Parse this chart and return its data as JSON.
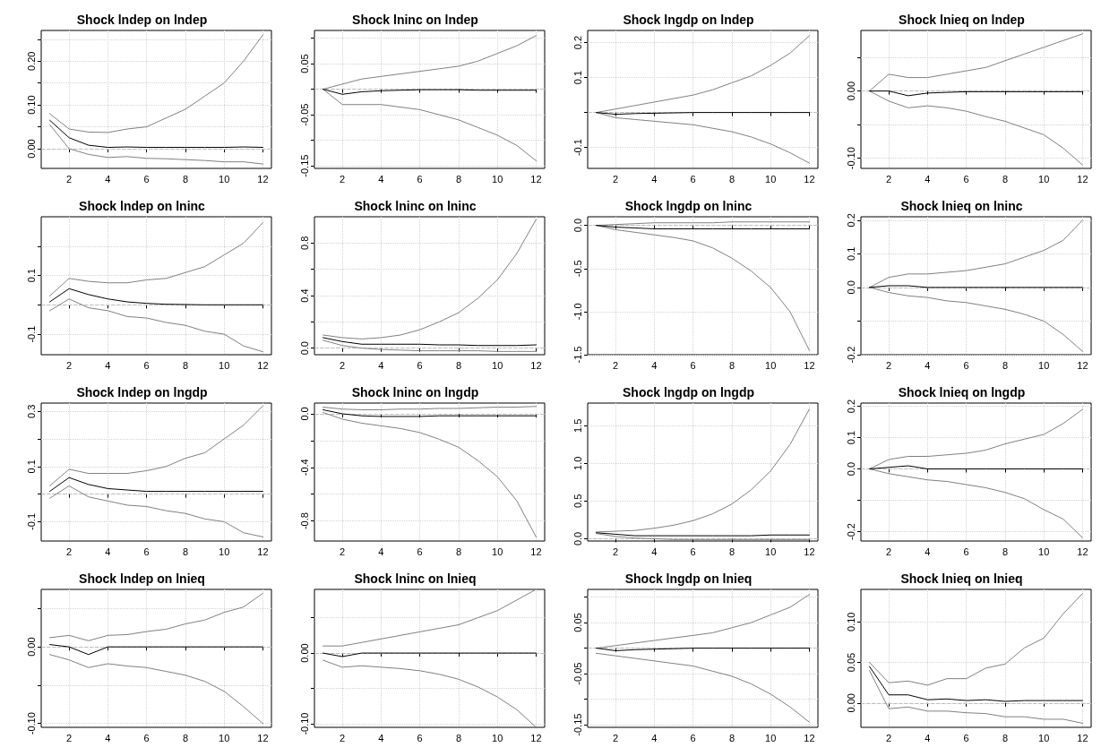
{
  "chart_data": [
    {
      "type": "line",
      "title": "Shock lndep on lndep",
      "x": [
        1,
        2,
        3,
        4,
        5,
        6,
        7,
        8,
        9,
        10,
        11,
        12
      ],
      "xlim": [
        0.56,
        12.44
      ],
      "xticks": [
        2,
        4,
        6,
        8,
        10,
        12
      ],
      "ylim": [
        -0.045,
        0.27
      ],
      "yticks": [
        {
          "value": 0,
          "label": "0.00"
        },
        {
          "value": 0.05,
          "label": null
        },
        {
          "value": 0.1,
          "label": "0.10"
        },
        {
          "value": 0.15,
          "label": null
        },
        {
          "value": 0.2,
          "label": "0.20"
        },
        {
          "value": 0.25,
          "label": null
        }
      ],
      "grid": true,
      "marker": "none",
      "line_style": "solid",
      "ref_lines": [
        {
          "axis": "y",
          "value": 0,
          "color": "#bebebe",
          "line_style": "dashed"
        }
      ],
      "series": [
        {
          "color": "#000000",
          "values": [
            0.065,
            0.025,
            0.008,
            0.003,
            0.004,
            0.003,
            0.003,
            0.003,
            0.003,
            0.003,
            0.004,
            0.003
          ]
        },
        {
          "color": "#808080",
          "values": [
            0.08,
            0.045,
            0.038,
            0.037,
            0.045,
            0.05,
            0.07,
            0.09,
            0.12,
            0.15,
            0.2,
            0.26
          ]
        },
        {
          "color": "#808080",
          "values": [
            0.055,
            0.0,
            -0.013,
            -0.02,
            -0.018,
            -0.022,
            -0.023,
            -0.025,
            -0.027,
            -0.03,
            -0.03,
            -0.035
          ]
        }
      ]
    },
    {
      "type": "line",
      "title": "Shock lninc on lndep",
      "x": [
        1,
        2,
        3,
        4,
        5,
        6,
        7,
        8,
        9,
        10,
        11,
        12
      ],
      "xlim": [
        0.56,
        12.44
      ],
      "xticks": [
        2,
        4,
        6,
        8,
        10,
        12
      ],
      "ylim": [
        -0.155,
        0.115
      ],
      "yticks": [
        -0.15,
        {
          "value": -0.1,
          "label": null
        },
        -0.05,
        {
          "value": 0,
          "label": null
        },
        0.05,
        {
          "value": 0.1,
          "label": null
        }
      ],
      "grid": true,
      "marker": "none",
      "line_style": "solid",
      "ref_lines": [
        {
          "axis": "y",
          "value": 0,
          "color": "#bebebe",
          "line_style": "dashed"
        }
      ],
      "series": [
        {
          "color": "#000000",
          "values": [
            0,
            -0.01,
            -0.005,
            -0.003,
            -0.002,
            -0.001,
            -0.001,
            -0.001,
            -0.002,
            -0.002,
            -0.002,
            -0.002
          ]
        },
        {
          "color": "#808080",
          "values": [
            0,
            0.01,
            0.02,
            0.025,
            0.03,
            0.035,
            0.04,
            0.045,
            0.055,
            0.07,
            0.085,
            0.105
          ]
        },
        {
          "color": "#808080",
          "values": [
            0,
            -0.03,
            -0.03,
            -0.03,
            -0.035,
            -0.04,
            -0.05,
            -0.06,
            -0.075,
            -0.09,
            -0.11,
            -0.14
          ]
        }
      ]
    },
    {
      "type": "line",
      "title": "Shock lngdp on lndep",
      "x": [
        1,
        2,
        3,
        4,
        5,
        6,
        7,
        8,
        9,
        10,
        11,
        12
      ],
      "xlim": [
        0.56,
        12.44
      ],
      "xticks": [
        2,
        4,
        6,
        8,
        10,
        12
      ],
      "ylim": [
        -0.16,
        0.235
      ],
      "yticks": [
        -0.1,
        {
          "value": 0,
          "label": null
        },
        0.1,
        0.2
      ],
      "grid": true,
      "marker": "none",
      "line_style": "solid",
      "ref_lines": [
        {
          "axis": "y",
          "value": 0,
          "color": "#bebebe",
          "line_style": "dashed"
        }
      ],
      "series": [
        {
          "color": "#000000",
          "values": [
            0,
            -0.005,
            -0.003,
            -0.002,
            -0.001,
            0,
            0,
            0,
            0,
            0,
            0,
            0
          ]
        },
        {
          "color": "#808080",
          "values": [
            0,
            0.01,
            0.02,
            0.03,
            0.04,
            0.05,
            0.065,
            0.085,
            0.105,
            0.135,
            0.17,
            0.22
          ]
        },
        {
          "color": "#808080",
          "values": [
            0,
            -0.015,
            -0.02,
            -0.025,
            -0.03,
            -0.035,
            -0.045,
            -0.055,
            -0.07,
            -0.09,
            -0.115,
            -0.145
          ]
        }
      ]
    },
    {
      "type": "line",
      "title": "Shock lnieq on lndep",
      "x": [
        1,
        2,
        3,
        4,
        5,
        6,
        7,
        8,
        9,
        10,
        11,
        12
      ],
      "xlim": [
        0.56,
        12.44
      ],
      "xticks": [
        2,
        4,
        6,
        8,
        10,
        12
      ],
      "ylim": [
        -0.115,
        0.09
      ],
      "yticks": [
        {
          "value": -0.1,
          "label": "-0.10"
        },
        {
          "value": -0.05,
          "label": null
        },
        {
          "value": 0,
          "label": "0.00"
        },
        {
          "value": 0.05,
          "label": null
        }
      ],
      "grid": true,
      "marker": "none",
      "line_style": "solid",
      "ref_lines": [
        {
          "axis": "y",
          "value": 0,
          "color": "#bebebe",
          "line_style": "dashed"
        }
      ],
      "series": [
        {
          "color": "#000000",
          "values": [
            0,
            0,
            -0.007,
            -0.003,
            -0.002,
            -0.001,
            -0.001,
            -0.001,
            -0.001,
            -0.001,
            -0.001,
            -0.001
          ]
        },
        {
          "color": "#808080",
          "values": [
            0,
            0.025,
            0.02,
            0.02,
            0.025,
            0.03,
            0.035,
            0.045,
            0.055,
            0.065,
            0.075,
            0.085
          ]
        },
        {
          "color": "#808080",
          "values": [
            0,
            -0.015,
            -0.025,
            -0.022,
            -0.025,
            -0.03,
            -0.038,
            -0.045,
            -0.055,
            -0.065,
            -0.085,
            -0.11
          ]
        }
      ]
    },
    {
      "type": "line",
      "title": "Shock lndep on lninc",
      "x": [
        1,
        2,
        3,
        4,
        5,
        6,
        7,
        8,
        9,
        10,
        11,
        12
      ],
      "xlim": [
        0.56,
        12.44
      ],
      "xticks": [
        2,
        4,
        6,
        8,
        10,
        12
      ],
      "ylim": [
        -0.17,
        0.3
      ],
      "yticks": [
        -0.1,
        {
          "value": 0,
          "label": null
        },
        0.1,
        {
          "value": 0.2,
          "label": null
        }
      ],
      "grid": true,
      "marker": "none",
      "line_style": "solid",
      "ref_lines": [
        {
          "axis": "y",
          "value": 0,
          "color": "#bebebe",
          "line_style": "dashed"
        }
      ],
      "series": [
        {
          "color": "#000000",
          "values": [
            0.01,
            0.055,
            0.035,
            0.02,
            0.01,
            0.005,
            0.002,
            0.001,
            0,
            0,
            0,
            0
          ]
        },
        {
          "color": "#808080",
          "values": [
            0.03,
            0.09,
            0.08,
            0.075,
            0.075,
            0.085,
            0.09,
            0.11,
            0.13,
            0.17,
            0.21,
            0.28
          ]
        },
        {
          "color": "#808080",
          "values": [
            -0.02,
            0.02,
            -0.01,
            -0.02,
            -0.04,
            -0.045,
            -0.06,
            -0.07,
            -0.09,
            -0.1,
            -0.14,
            -0.16
          ]
        }
      ]
    },
    {
      "type": "line",
      "title": "Shock lninc on lninc",
      "x": [
        1,
        2,
        3,
        4,
        5,
        6,
        7,
        8,
        9,
        10,
        11,
        12
      ],
      "xlim": [
        0.56,
        12.44
      ],
      "xticks": [
        2,
        4,
        6,
        8,
        10,
        12
      ],
      "ylim": [
        -0.05,
        1.0
      ],
      "yticks": [
        {
          "value": 0,
          "label": "0.0"
        },
        {
          "value": 0.2,
          "label": null
        },
        0.4,
        {
          "value": 0.6,
          "label": null
        },
        0.8
      ],
      "grid": true,
      "marker": "none",
      "line_style": "solid",
      "ref_lines": [
        {
          "axis": "y",
          "value": 0,
          "color": "#bebebe",
          "line_style": "dashed"
        }
      ],
      "series": [
        {
          "color": "#000000",
          "values": [
            0.08,
            0.05,
            0.03,
            0.03,
            0.03,
            0.03,
            0.025,
            0.025,
            0.02,
            0.02,
            0.02,
            0.025
          ]
        },
        {
          "color": "#808080",
          "values": [
            0.1,
            0.08,
            0.07,
            0.08,
            0.1,
            0.14,
            0.2,
            0.27,
            0.38,
            0.52,
            0.72,
            0.98
          ]
        },
        {
          "color": "#808080",
          "values": [
            0.06,
            0.02,
            0,
            -0.01,
            -0.015,
            -0.02,
            -0.02,
            -0.02,
            -0.02,
            -0.025,
            -0.025,
            -0.025
          ]
        }
      ]
    },
    {
      "type": "line",
      "title": "Shock lngdp on lninc",
      "x": [
        1,
        2,
        3,
        4,
        5,
        6,
        7,
        8,
        9,
        10,
        11,
        12
      ],
      "xlim": [
        0.56,
        12.44
      ],
      "xticks": [
        2,
        4,
        6,
        8,
        10,
        12
      ],
      "ylim": [
        -1.5,
        0.1
      ],
      "yticks": [
        -1.5,
        {
          "value": -1,
          "label": "-1.0"
        },
        -0.5,
        {
          "value": 0,
          "label": "0.0"
        }
      ],
      "grid": true,
      "marker": "none",
      "line_style": "solid",
      "ref_lines": [
        {
          "axis": "y",
          "value": 0,
          "color": "#bebebe",
          "line_style": "dashed"
        }
      ],
      "series": [
        {
          "color": "#000000",
          "values": [
            0,
            -0.02,
            -0.03,
            -0.04,
            -0.04,
            -0.04,
            -0.04,
            -0.04,
            -0.04,
            -0.04,
            -0.04,
            -0.04
          ]
        },
        {
          "color": "#808080",
          "values": [
            0,
            0.01,
            0.02,
            0.03,
            0.03,
            0.03,
            0.03,
            0.04,
            0.04,
            0.04,
            0.04,
            0.04
          ]
        },
        {
          "color": "#808080",
          "values": [
            0,
            -0.05,
            -0.08,
            -0.11,
            -0.14,
            -0.18,
            -0.26,
            -0.38,
            -0.53,
            -0.72,
            -1.0,
            -1.45
          ]
        }
      ]
    },
    {
      "type": "line",
      "title": "Shock lnieq on lninc",
      "x": [
        1,
        2,
        3,
        4,
        5,
        6,
        7,
        8,
        9,
        10,
        11,
        12
      ],
      "xlim": [
        0.56,
        12.44
      ],
      "xticks": [
        2,
        4,
        6,
        8,
        10,
        12
      ],
      "ylim": [
        -0.2,
        0.21
      ],
      "yticks": [
        -0.2,
        {
          "value": -0.1,
          "label": null
        },
        {
          "value": 0,
          "label": "0.0"
        },
        0.1,
        0.2
      ],
      "grid": true,
      "marker": "none",
      "line_style": "solid",
      "ref_lines": [
        {
          "axis": "y",
          "value": 0,
          "color": "#bebebe",
          "line_style": "dashed"
        }
      ],
      "series": [
        {
          "color": "#000000",
          "values": [
            0,
            0.005,
            0.005,
            0,
            0,
            0,
            0,
            0,
            0,
            0,
            0,
            0
          ]
        },
        {
          "color": "#808080",
          "values": [
            0,
            0.03,
            0.04,
            0.04,
            0.045,
            0.05,
            0.06,
            0.07,
            0.09,
            0.11,
            0.14,
            0.2
          ]
        },
        {
          "color": "#808080",
          "values": [
            0,
            -0.015,
            -0.025,
            -0.03,
            -0.04,
            -0.045,
            -0.055,
            -0.065,
            -0.08,
            -0.1,
            -0.14,
            -0.19
          ]
        }
      ]
    },
    {
      "type": "line",
      "title": "Shock lndep on lngdp",
      "x": [
        1,
        2,
        3,
        4,
        5,
        6,
        7,
        8,
        9,
        10,
        11,
        12
      ],
      "xlim": [
        0.56,
        12.44
      ],
      "xticks": [
        2,
        4,
        6,
        8,
        10,
        12
      ],
      "ylim": [
        -0.17,
        0.33
      ],
      "yticks": [
        -0.1,
        {
          "value": 0,
          "label": null
        },
        0.1,
        {
          "value": 0.2,
          "label": null
        },
        0.3
      ],
      "grid": true,
      "marker": "none",
      "line_style": "solid",
      "ref_lines": [
        {
          "axis": "y",
          "value": 0,
          "color": "#bebebe",
          "line_style": "dashed"
        }
      ],
      "series": [
        {
          "color": "#000000",
          "values": [
            0.01,
            0.06,
            0.035,
            0.02,
            0.015,
            0.01,
            0.01,
            0.01,
            0.01,
            0.01,
            0.01,
            0.01
          ]
        },
        {
          "color": "#808080",
          "values": [
            0.03,
            0.09,
            0.075,
            0.075,
            0.075,
            0.085,
            0.1,
            0.13,
            0.15,
            0.2,
            0.25,
            0.32
          ]
        },
        {
          "color": "#808080",
          "values": [
            -0.015,
            0.03,
            -0.01,
            -0.025,
            -0.04,
            -0.045,
            -0.06,
            -0.07,
            -0.09,
            -0.1,
            -0.14,
            -0.155
          ]
        }
      ]
    },
    {
      "type": "line",
      "title": "Shock lninc on lngdp",
      "x": [
        1,
        2,
        3,
        4,
        5,
        6,
        7,
        8,
        9,
        10,
        11,
        12
      ],
      "xlim": [
        0.56,
        12.44
      ],
      "xticks": [
        2,
        4,
        6,
        8,
        10,
        12
      ],
      "ylim": [
        -0.95,
        0.08
      ],
      "yticks": [
        -0.8,
        {
          "value": -0.6,
          "label": null
        },
        -0.4,
        {
          "value": -0.2,
          "label": null
        },
        {
          "value": 0,
          "label": "0.0"
        }
      ],
      "grid": true,
      "marker": "none",
      "line_style": "solid",
      "ref_lines": [
        {
          "axis": "y",
          "value": 0,
          "color": "#bebebe",
          "line_style": "dashed"
        }
      ],
      "series": [
        {
          "color": "#000000",
          "values": [
            0.03,
            0,
            -0.015,
            -0.02,
            -0.02,
            -0.02,
            -0.015,
            -0.015,
            -0.015,
            -0.015,
            -0.015,
            -0.015
          ]
        },
        {
          "color": "#808080",
          "values": [
            0.05,
            0.035,
            0.03,
            0.03,
            0.035,
            0.035,
            0.04,
            0.04,
            0.045,
            0.05,
            0.05,
            0.055
          ]
        },
        {
          "color": "#808080",
          "values": [
            0.01,
            -0.04,
            -0.07,
            -0.09,
            -0.11,
            -0.14,
            -0.19,
            -0.25,
            -0.35,
            -0.47,
            -0.65,
            -0.92
          ]
        }
      ]
    },
    {
      "type": "line",
      "title": "Shock lngdp on lngdp",
      "x": [
        1,
        2,
        3,
        4,
        5,
        6,
        7,
        8,
        9,
        10,
        11,
        12
      ],
      "xlim": [
        0.56,
        12.44
      ],
      "xticks": [
        2,
        4,
        6,
        8,
        10,
        12
      ],
      "ylim": [
        -0.03,
        1.8
      ],
      "yticks": [
        {
          "value": 0,
          "label": "0.0"
        },
        0.5,
        {
          "value": 1,
          "label": "1.0"
        },
        1.5
      ],
      "grid": true,
      "marker": "none",
      "line_style": "solid",
      "ref_lines": [
        {
          "axis": "y",
          "value": 0,
          "color": "#bebebe",
          "line_style": "dashed"
        }
      ],
      "series": [
        {
          "color": "#000000",
          "values": [
            0.08,
            0.06,
            0.04,
            0.04,
            0.04,
            0.04,
            0.04,
            0.04,
            0.04,
            0.05,
            0.05,
            0.05
          ]
        },
        {
          "color": "#808080",
          "values": [
            0.09,
            0.1,
            0.11,
            0.14,
            0.18,
            0.24,
            0.33,
            0.46,
            0.65,
            0.9,
            1.25,
            1.72
          ]
        },
        {
          "color": "#808080",
          "values": [
            0.07,
            0.03,
            0.01,
            0,
            -0.01,
            -0.01,
            -0.01,
            -0.01,
            -0.01,
            -0.01,
            -0.01,
            -0.01
          ]
        }
      ]
    },
    {
      "type": "line",
      "title": "Shock lnieq on lngdp",
      "x": [
        1,
        2,
        3,
        4,
        5,
        6,
        7,
        8,
        9,
        10,
        11,
        12
      ],
      "xlim": [
        0.56,
        12.44
      ],
      "xticks": [
        2,
        4,
        6,
        8,
        10,
        12
      ],
      "ylim": [
        -0.23,
        0.21
      ],
      "yticks": [
        -0.2,
        {
          "value": -0.1,
          "label": null
        },
        {
          "value": 0,
          "label": "0.0"
        },
        0.1,
        0.2
      ],
      "grid": true,
      "marker": "none",
      "line_style": "solid",
      "ref_lines": [
        {
          "axis": "y",
          "value": 0,
          "color": "#bebebe",
          "line_style": "dashed"
        }
      ],
      "series": [
        {
          "color": "#000000",
          "values": [
            0,
            0.005,
            0.01,
            0,
            0,
            0,
            0,
            0,
            0,
            0,
            0,
            0
          ]
        },
        {
          "color": "#808080",
          "values": [
            0,
            0.03,
            0.04,
            0.04,
            0.045,
            0.05,
            0.06,
            0.08,
            0.095,
            0.11,
            0.145,
            0.19
          ]
        },
        {
          "color": "#808080",
          "values": [
            0,
            -0.015,
            -0.025,
            -0.035,
            -0.04,
            -0.05,
            -0.06,
            -0.075,
            -0.095,
            -0.13,
            -0.16,
            -0.22
          ]
        }
      ]
    },
    {
      "type": "line",
      "title": "Shock lndep on lnieq",
      "x": [
        1,
        2,
        3,
        4,
        5,
        6,
        7,
        8,
        9,
        10,
        11,
        12
      ],
      "xlim": [
        0.56,
        12.44
      ],
      "xticks": [
        2,
        4,
        6,
        8,
        10,
        12
      ],
      "ylim": [
        -0.105,
        0.075
      ],
      "yticks": [
        {
          "value": -0.1,
          "label": "-0.10"
        },
        {
          "value": -0.05,
          "label": null
        },
        {
          "value": 0,
          "label": "0.00"
        },
        {
          "value": 0.05,
          "label": null
        }
      ],
      "grid": true,
      "marker": "none",
      "line_style": "solid",
      "ref_lines": [
        {
          "axis": "y",
          "value": 0,
          "color": "#bebebe",
          "line_style": "dashed"
        }
      ],
      "series": [
        {
          "color": "#000000",
          "values": [
            0.003,
            0,
            -0.01,
            0,
            0,
            0,
            0,
            0,
            0,
            0,
            0,
            0
          ]
        },
        {
          "color": "#808080",
          "values": [
            0.012,
            0.015,
            0.008,
            0.015,
            0.016,
            0.02,
            0.023,
            0.03,
            0.035,
            0.045,
            0.052,
            0.07
          ]
        },
        {
          "color": "#808080",
          "values": [
            -0.01,
            -0.017,
            -0.027,
            -0.022,
            -0.025,
            -0.027,
            -0.032,
            -0.037,
            -0.045,
            -0.058,
            -0.078,
            -0.1
          ]
        }
      ]
    },
    {
      "type": "line",
      "title": "Shock lninc on lnieq",
      "x": [
        1,
        2,
        3,
        4,
        5,
        6,
        7,
        8,
        9,
        10,
        11,
        12
      ],
      "xlim": [
        0.56,
        12.44
      ],
      "xticks": [
        2,
        4,
        6,
        8,
        10,
        12
      ],
      "ylim": [
        -0.105,
        0.09
      ],
      "yticks": [
        {
          "value": -0.1,
          "label": "-0.10"
        },
        {
          "value": -0.05,
          "label": null
        },
        {
          "value": 0,
          "label": "0.00"
        },
        {
          "value": 0.05,
          "label": null
        }
      ],
      "grid": true,
      "marker": "none",
      "line_style": "solid",
      "ref_lines": [
        {
          "axis": "y",
          "value": 0,
          "color": "#bebebe",
          "line_style": "dashed"
        }
      ],
      "series": [
        {
          "color": "#000000",
          "values": [
            0,
            -0.005,
            0,
            0,
            0,
            0,
            0,
            0,
            0,
            0,
            0,
            0
          ]
        },
        {
          "color": "#808080",
          "values": [
            0.01,
            0.01,
            0.015,
            0.02,
            0.025,
            0.03,
            0.035,
            0.04,
            0.05,
            0.06,
            0.075,
            0.09
          ]
        },
        {
          "color": "#808080",
          "values": [
            -0.01,
            -0.02,
            -0.018,
            -0.02,
            -0.022,
            -0.025,
            -0.03,
            -0.037,
            -0.048,
            -0.062,
            -0.08,
            -0.105
          ]
        }
      ]
    },
    {
      "type": "line",
      "title": "Shock lngdp on lnieq",
      "x": [
        1,
        2,
        3,
        4,
        5,
        6,
        7,
        8,
        9,
        10,
        11,
        12
      ],
      "xlim": [
        0.56,
        12.44
      ],
      "xticks": [
        2,
        4,
        6,
        8,
        10,
        12
      ],
      "ylim": [
        -0.155,
        0.115
      ],
      "yticks": [
        -0.15,
        {
          "value": -0.1,
          "label": null
        },
        -0.05,
        {
          "value": 0,
          "label": null
        },
        0.05,
        {
          "value": 0.1,
          "label": null
        }
      ],
      "grid": true,
      "marker": "none",
      "line_style": "solid",
      "ref_lines": [
        {
          "axis": "y",
          "value": 0,
          "color": "#bebebe",
          "line_style": "dashed"
        }
      ],
      "series": [
        {
          "color": "#000000",
          "values": [
            0,
            -0.005,
            -0.003,
            -0.002,
            -0.001,
            0,
            0,
            0,
            0,
            0,
            0,
            0
          ]
        },
        {
          "color": "#808080",
          "values": [
            0,
            0.005,
            0.01,
            0.015,
            0.02,
            0.025,
            0.03,
            0.04,
            0.05,
            0.065,
            0.08,
            0.105
          ]
        },
        {
          "color": "#808080",
          "values": [
            -0.01,
            -0.015,
            -0.02,
            -0.025,
            -0.03,
            -0.035,
            -0.045,
            -0.055,
            -0.07,
            -0.09,
            -0.115,
            -0.145
          ]
        }
      ]
    },
    {
      "type": "line",
      "title": "Shock lnieq on lnieq",
      "x": [
        1,
        2,
        3,
        4,
        5,
        6,
        7,
        8,
        9,
        10,
        11,
        12
      ],
      "xlim": [
        0.56,
        12.44
      ],
      "xticks": [
        2,
        4,
        6,
        8,
        10,
        12
      ],
      "ylim": [
        -0.03,
        0.14
      ],
      "yticks": [
        {
          "value": 0,
          "label": "0.00"
        },
        0.05,
        {
          "value": 0.1,
          "label": "0.10"
        }
      ],
      "grid": true,
      "marker": "none",
      "line_style": "solid",
      "ref_lines": [
        {
          "axis": "y",
          "value": 0,
          "color": "#bebebe",
          "line_style": "dashed"
        }
      ],
      "series": [
        {
          "color": "#000000",
          "values": [
            0.045,
            0.01,
            0.01,
            0.004,
            0.005,
            0.003,
            0.004,
            0.002,
            0.003,
            0.003,
            0.003,
            0.003
          ]
        },
        {
          "color": "#808080",
          "values": [
            0.05,
            0.025,
            0.027,
            0.022,
            0.03,
            0.03,
            0.043,
            0.048,
            0.068,
            0.08,
            0.11,
            0.135
          ]
        },
        {
          "color": "#808080",
          "values": [
            0.04,
            -0.007,
            -0.005,
            -0.01,
            -0.01,
            -0.012,
            -0.013,
            -0.017,
            -0.017,
            -0.02,
            -0.02,
            -0.025
          ]
        }
      ]
    }
  ]
}
